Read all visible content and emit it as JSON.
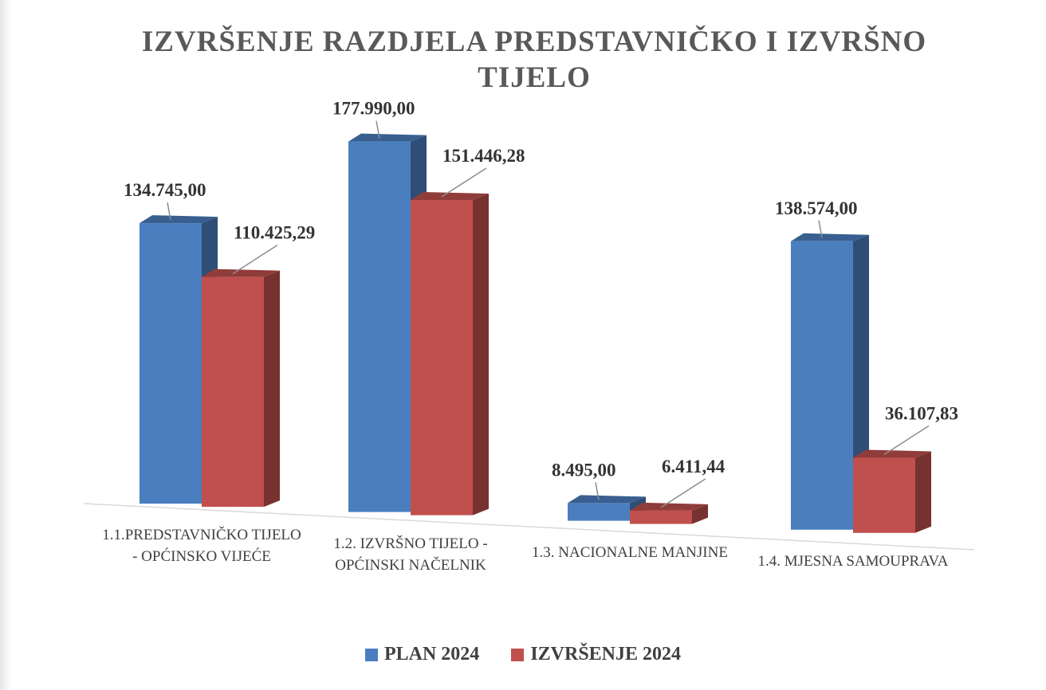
{
  "chart_data": {
    "type": "bar3d",
    "title": "IZVRŠENJE RAZDJELA PREDSTAVNIČKO I IZVRŠNO TIJELO",
    "categories": [
      "1.1.PREDSTAVNIČKO TIJELO - OPĆINSKO VIJEĆE",
      "1.2. IZVRŠNO TIJELO - OPĆINSKI NAČELNIK",
      "1.3. NACIONALNE MANJINE",
      "1.4. MJESNA SAMOUPRAVA"
    ],
    "series": [
      {
        "name": "PLAN 2024",
        "color": "#4a7ebf",
        "values": [
          134745,
          177990,
          8495,
          138574
        ],
        "value_labels": [
          "134.745,00",
          "177.990,00",
          "8.495,00",
          "138.574,00"
        ]
      },
      {
        "name": "IZVRŠENJE 2024",
        "color": "#c0504d",
        "values": [
          110425.29,
          151446.28,
          6411.44,
          36107.83
        ],
        "value_labels": [
          "110.425,29",
          "151.446,28",
          "6.411,44",
          "36.107,83"
        ]
      }
    ],
    "legend": "bottom"
  }
}
